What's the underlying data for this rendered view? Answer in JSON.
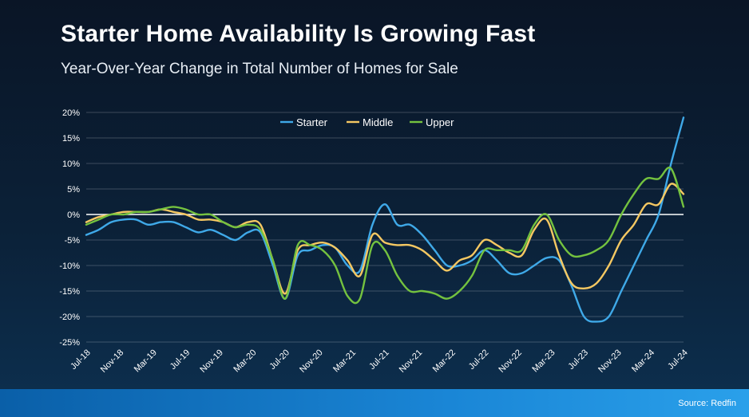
{
  "header": {
    "title": "Starter Home Availability Is Growing Fast",
    "subtitle": "Year-Over-Year Change in Total Number of Homes for Sale"
  },
  "footer": {
    "source": "Source: Redfin"
  },
  "chart_data": {
    "type": "line",
    "y_ticks": [
      "20%",
      "15%",
      "10%",
      "5%",
      "0%",
      "-5%",
      "-10%",
      "-15%",
      "-20%",
      "-25%"
    ],
    "ylim": [
      -25,
      20
    ],
    "x_tick_labels": [
      "Jul-18",
      "Nov-18",
      "Mar-19",
      "Jul-19",
      "Nov-19",
      "Mar-20",
      "Jul-20",
      "Nov-20",
      "Mar-21",
      "Jul-21",
      "Nov-21",
      "Mar-22",
      "Jul-22",
      "Nov-22",
      "Mar-23",
      "Jul-23",
      "Nov-23",
      "Mar-24",
      "Jul-24"
    ],
    "grid": true,
    "legend": "top-center",
    "colors": {
      "Starter": "#3fa9e8",
      "Middle": "#f5c862",
      "Upper": "#74c23f"
    },
    "series": [
      {
        "name": "Starter",
        "values": [
          -4,
          -3,
          -1.5,
          -1,
          -1,
          -2,
          -1.5,
          -1.5,
          -2.5,
          -3.5,
          -3,
          -4,
          -5,
          -3.5,
          -3.5,
          -10,
          -16.5,
          -8,
          -7,
          -6,
          -6.5,
          -10,
          -11,
          -2,
          2,
          -2,
          -2,
          -4,
          -7,
          -10,
          -10,
          -9,
          -7,
          -9,
          -11.5,
          -11.5,
          -10,
          -8.5,
          -9,
          -14,
          -20,
          -21,
          -20,
          -15,
          -10,
          -5,
          0,
          10,
          19
        ]
      },
      {
        "name": "Middle",
        "values": [
          -1.5,
          -0.5,
          0,
          0.5,
          0.5,
          0.5,
          1,
          0.5,
          0,
          -1,
          -1,
          -1.5,
          -2.5,
          -1.5,
          -2,
          -9,
          -15.5,
          -7,
          -6,
          -5.5,
          -6.5,
          -9,
          -12,
          -4,
          -5.5,
          -6,
          -6,
          -7,
          -9,
          -11,
          -9,
          -8,
          -5,
          -6,
          -7.5,
          -8,
          -3,
          -1,
          -8,
          -13.5,
          -14.5,
          -13.5,
          -10,
          -5,
          -2,
          2,
          2,
          6,
          4
        ]
      },
      {
        "name": "Upper",
        "values": [
          -2,
          -1,
          0,
          0,
          0.5,
          0.5,
          1,
          1.5,
          1,
          0,
          0,
          -1.5,
          -2.5,
          -2,
          -3,
          -9,
          -16.5,
          -6,
          -6,
          -7,
          -10,
          -16,
          -16.5,
          -6,
          -7,
          -12,
          -15,
          -15,
          -15.5,
          -16.5,
          -15,
          -12,
          -7,
          -7,
          -7,
          -7,
          -2,
          0,
          -5,
          -8,
          -8,
          -7,
          -5,
          0,
          4,
          7,
          7,
          9,
          1.5
        ]
      }
    ]
  }
}
